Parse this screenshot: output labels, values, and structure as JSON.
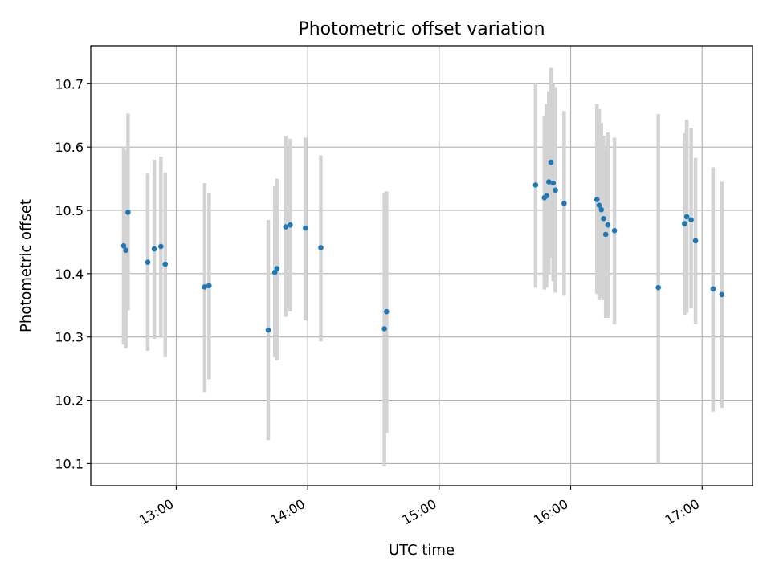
{
  "chart_data": {
    "type": "scatter",
    "title": "Photometric offset variation",
    "xlabel": "UTC time",
    "ylabel": "Photometric offset",
    "xlim": [
      "12:21",
      "17:23"
    ],
    "ylim": [
      10.065,
      10.76
    ],
    "x_ticks": [
      "13:00",
      "14:00",
      "15:00",
      "16:00",
      "17:00"
    ],
    "y_ticks": [
      10.1,
      10.2,
      10.3,
      10.4,
      10.5,
      10.6,
      10.7
    ],
    "grid": true,
    "colors": {
      "marker": "#1f77b4",
      "errorbar": "#d3d3d3",
      "grid": "#b0b0b0"
    },
    "points": [
      {
        "x": "12:36",
        "y": 10.444,
        "ylow": 10.288,
        "yhigh": 10.6
      },
      {
        "x": "12:37",
        "y": 10.437,
        "ylow": 10.282,
        "yhigh": 10.595
      },
      {
        "x": "12:38",
        "y": 10.497,
        "ylow": 10.342,
        "yhigh": 10.653
      },
      {
        "x": "12:47",
        "y": 10.418,
        "ylow": 10.278,
        "yhigh": 10.558
      },
      {
        "x": "12:50",
        "y": 10.439,
        "ylow": 10.297,
        "yhigh": 10.58
      },
      {
        "x": "12:53",
        "y": 10.443,
        "ylow": 10.3,
        "yhigh": 10.585
      },
      {
        "x": "12:55",
        "y": 10.415,
        "ylow": 10.268,
        "yhigh": 10.56
      },
      {
        "x": "13:13",
        "y": 10.379,
        "ylow": 10.213,
        "yhigh": 10.543
      },
      {
        "x": "13:15",
        "y": 10.381,
        "ylow": 10.233,
        "yhigh": 10.528
      },
      {
        "x": "13:42",
        "y": 10.311,
        "ylow": 10.137,
        "yhigh": 10.485
      },
      {
        "x": "13:45",
        "y": 10.402,
        "ylow": 10.268,
        "yhigh": 10.538
      },
      {
        "x": "13:46",
        "y": 10.408,
        "ylow": 10.263,
        "yhigh": 10.55
      },
      {
        "x": "13:50",
        "y": 10.474,
        "ylow": 10.332,
        "yhigh": 10.617
      },
      {
        "x": "13:52",
        "y": 10.477,
        "ylow": 10.34,
        "yhigh": 10.613
      },
      {
        "x": "13:59",
        "y": 10.472,
        "ylow": 10.326,
        "yhigh": 10.615
      },
      {
        "x": "14:06",
        "y": 10.441,
        "ylow": 10.293,
        "yhigh": 10.587
      },
      {
        "x": "14:35",
        "y": 10.313,
        "ylow": 10.096,
        "yhigh": 10.528
      },
      {
        "x": "14:36",
        "y": 10.34,
        "ylow": 10.148,
        "yhigh": 10.53
      },
      {
        "x": "15:44",
        "y": 10.54,
        "ylow": 10.378,
        "yhigh": 10.7
      },
      {
        "x": "15:48",
        "y": 10.52,
        "ylow": 10.375,
        "yhigh": 10.65
      },
      {
        "x": "15:49",
        "y": 10.523,
        "ylow": 10.378,
        "yhigh": 10.668
      },
      {
        "x": "15:50",
        "y": 10.545,
        "ylow": 10.4,
        "yhigh": 10.688
      },
      {
        "x": "15:51",
        "y": 10.576,
        "ylow": 10.425,
        "yhigh": 10.725
      },
      {
        "x": "15:52",
        "y": 10.543,
        "ylow": 10.388,
        "yhigh": 10.7
      },
      {
        "x": "15:53",
        "y": 10.532,
        "ylow": 10.37,
        "yhigh": 10.695
      },
      {
        "x": "15:57",
        "y": 10.511,
        "ylow": 10.365,
        "yhigh": 10.657
      },
      {
        "x": "16:12",
        "y": 10.517,
        "ylow": 10.368,
        "yhigh": 10.668
      },
      {
        "x": "16:13",
        "y": 10.508,
        "ylow": 10.358,
        "yhigh": 10.66
      },
      {
        "x": "16:14",
        "y": 10.501,
        "ylow": 10.362,
        "yhigh": 10.638
      },
      {
        "x": "16:15",
        "y": 10.487,
        "ylow": 10.358,
        "yhigh": 10.618
      },
      {
        "x": "16:16",
        "y": 10.462,
        "ylow": 10.33,
        "yhigh": 10.598
      },
      {
        "x": "16:17",
        "y": 10.477,
        "ylow": 10.33,
        "yhigh": 10.623
      },
      {
        "x": "16:20",
        "y": 10.468,
        "ylow": 10.32,
        "yhigh": 10.615
      },
      {
        "x": "16:40",
        "y": 10.378,
        "ylow": 10.1,
        "yhigh": 10.652
      },
      {
        "x": "16:52",
        "y": 10.479,
        "ylow": 10.335,
        "yhigh": 10.622
      },
      {
        "x": "16:53",
        "y": 10.49,
        "ylow": 10.338,
        "yhigh": 10.643
      },
      {
        "x": "16:55",
        "y": 10.485,
        "ylow": 10.345,
        "yhigh": 10.63
      },
      {
        "x": "16:57",
        "y": 10.452,
        "ylow": 10.32,
        "yhigh": 10.583
      },
      {
        "x": "17:05",
        "y": 10.376,
        "ylow": 10.182,
        "yhigh": 10.568
      },
      {
        "x": "17:09",
        "y": 10.367,
        "ylow": 10.188,
        "yhigh": 10.545
      }
    ]
  }
}
